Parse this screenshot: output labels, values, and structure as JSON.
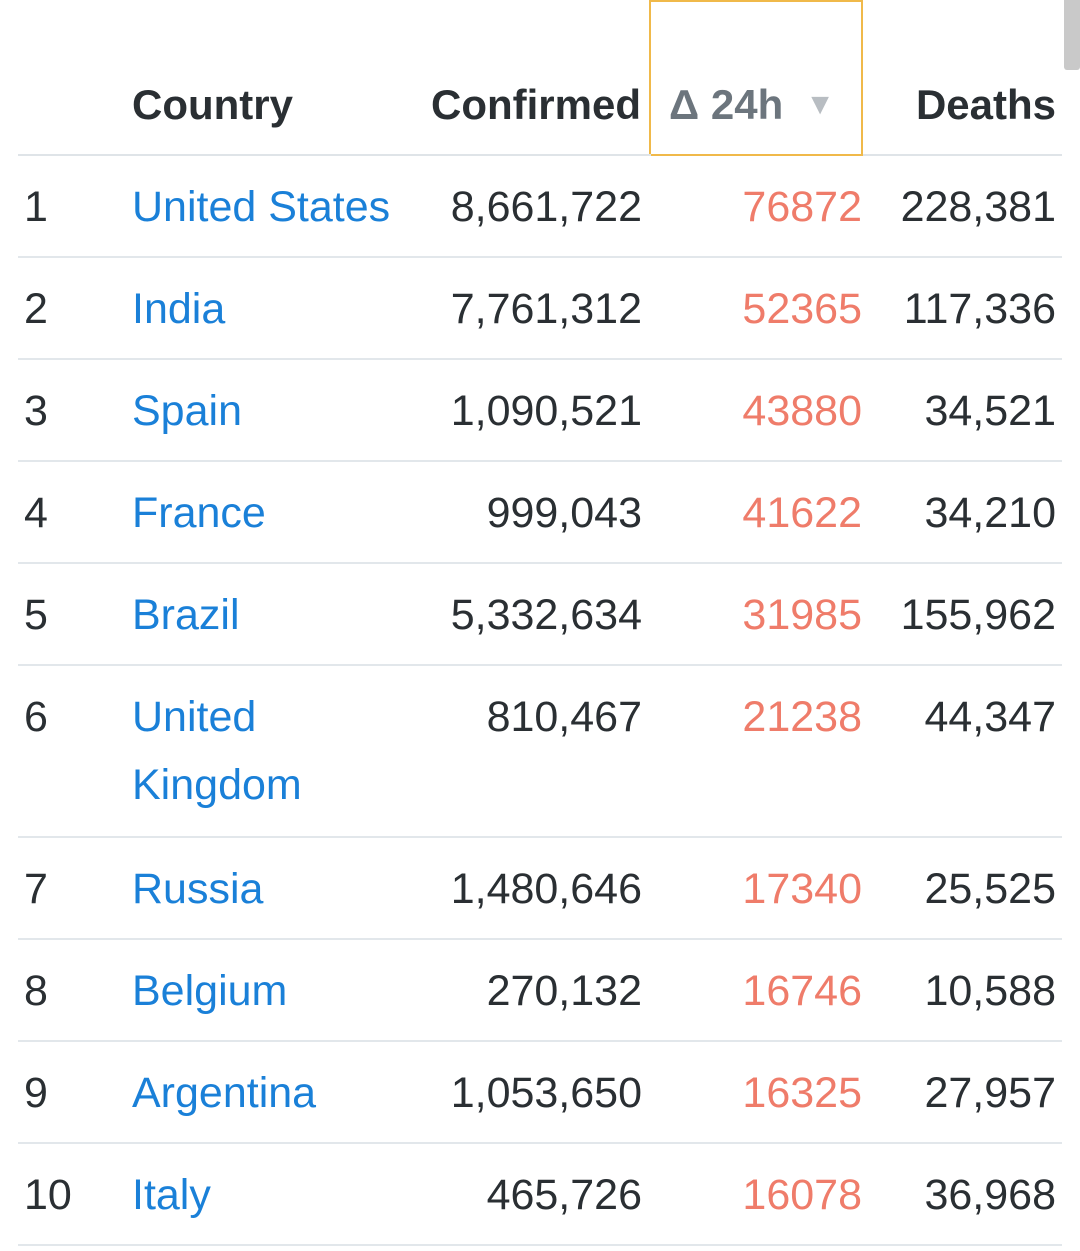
{
  "table": {
    "headers": {
      "rank": "",
      "country": "Country",
      "confirmed": "Confirmed",
      "delta": "Δ 24h",
      "delta_sort_icon": "▼",
      "deaths": "Deaths"
    },
    "rows": [
      {
        "rank": "1",
        "country": "United States",
        "confirmed": "8,661,722",
        "delta": "76872",
        "deaths": "228,381"
      },
      {
        "rank": "2",
        "country": "India",
        "confirmed": "7,761,312",
        "delta": "52365",
        "deaths": "117,336"
      },
      {
        "rank": "3",
        "country": "Spain",
        "confirmed": "1,090,521",
        "delta": "43880",
        "deaths": "34,521"
      },
      {
        "rank": "4",
        "country": "France",
        "confirmed": "999,043",
        "delta": "41622",
        "deaths": "34,210"
      },
      {
        "rank": "5",
        "country": "Brazil",
        "confirmed": "5,332,634",
        "delta": "31985",
        "deaths": "155,962"
      },
      {
        "rank": "6",
        "country": "United Kingdom",
        "confirmed": "810,467",
        "delta": "21238",
        "deaths": "44,347"
      },
      {
        "rank": "7",
        "country": "Russia",
        "confirmed": "1,480,646",
        "delta": "17340",
        "deaths": "25,525"
      },
      {
        "rank": "8",
        "country": "Belgium",
        "confirmed": "270,132",
        "delta": "16746",
        "deaths": "10,588"
      },
      {
        "rank": "9",
        "country": "Argentina",
        "confirmed": "1,053,650",
        "delta": "16325",
        "deaths": "27,957"
      },
      {
        "rank": "10",
        "country": "Italy",
        "confirmed": "465,726",
        "delta": "16078",
        "deaths": "36,968"
      }
    ]
  },
  "colors": {
    "link": "#1a80d8",
    "delta": "#ef7c6a",
    "sort_highlight": "#f0b94a"
  }
}
